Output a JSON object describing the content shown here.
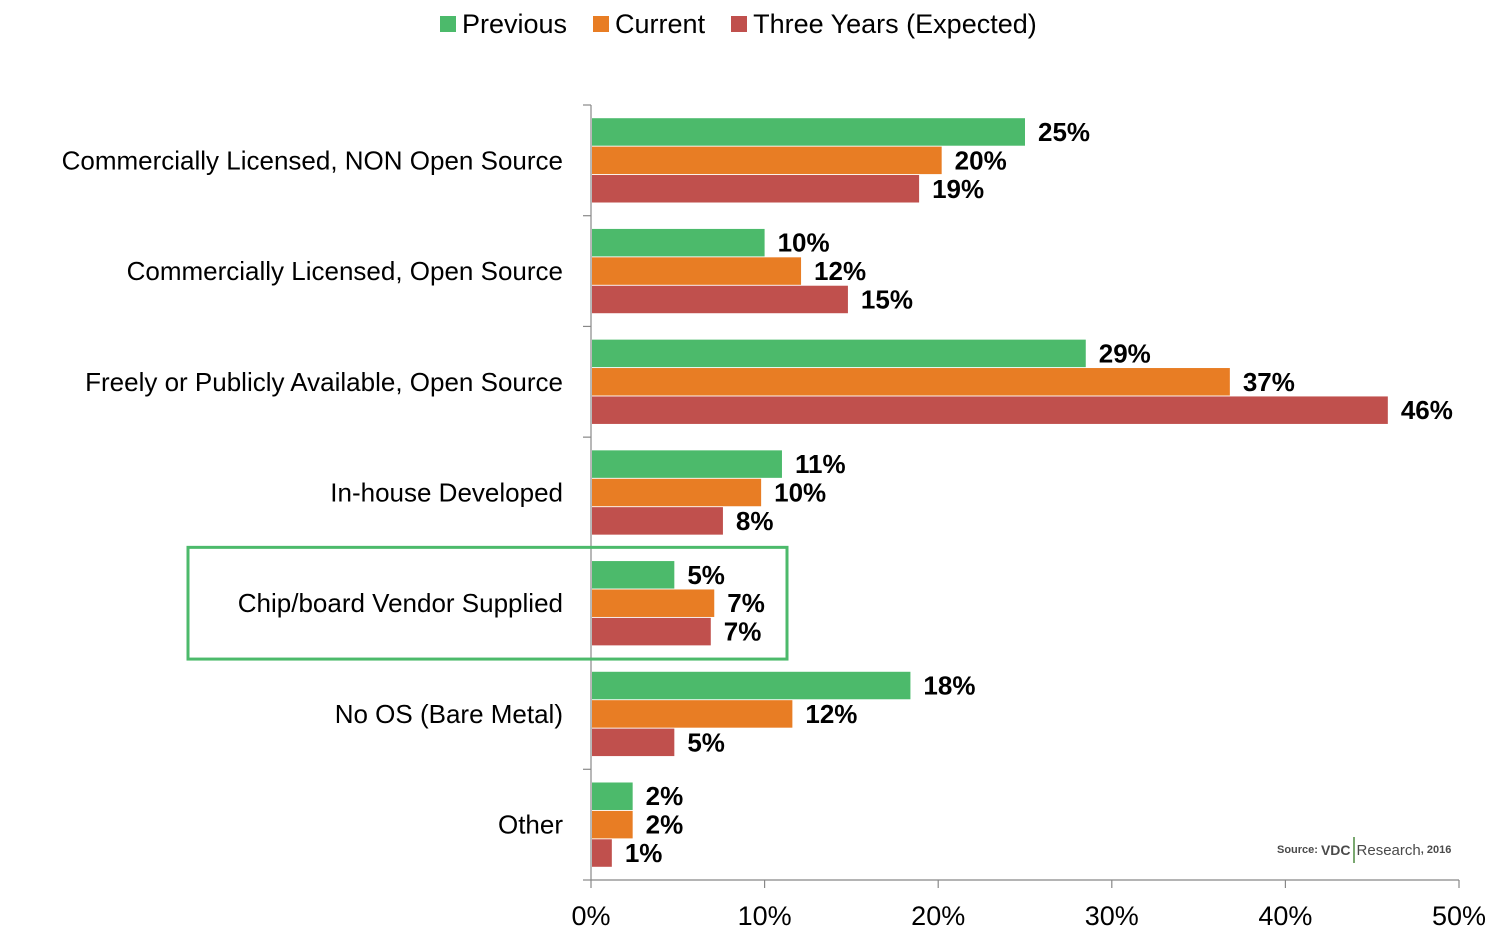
{
  "chart_data": {
    "type": "bar",
    "orientation": "horizontal",
    "categories": [
      "Commercially Licensed, NON Open Source",
      "Commercially Licensed, Open Source",
      "Freely or Publicly Available, Open Source",
      "In-house Developed",
      "Chip/board Vendor Supplied",
      "No OS (Bare Metal)",
      "Other"
    ],
    "series": [
      {
        "name": "Previous",
        "color": "#4cba6b",
        "values": [
          25,
          10,
          28.5,
          11,
          4.8,
          18.4,
          2.4
        ],
        "labels": [
          "25%",
          "10%",
          "29%",
          "11%",
          "5%",
          "18%",
          "2%"
        ]
      },
      {
        "name": "Current",
        "color": "#e87d24",
        "values": [
          20.2,
          12.1,
          36.8,
          9.8,
          7.1,
          11.6,
          2.4
        ],
        "labels": [
          "20%",
          "12%",
          "37%",
          "10%",
          "7%",
          "12%",
          "2%"
        ]
      },
      {
        "name": "Three Years (Expected)",
        "color": "#c0504d",
        "values": [
          18.9,
          14.8,
          45.9,
          7.6,
          6.9,
          4.8,
          1.2
        ],
        "labels": [
          "19%",
          "15%",
          "46%",
          "8%",
          "7%",
          "5%",
          "1%"
        ]
      }
    ],
    "xlim": [
      0,
      50
    ],
    "x_ticks": [
      0,
      10,
      20,
      30,
      40,
      50
    ],
    "x_tick_labels": [
      "0%",
      "10%",
      "20%",
      "30%",
      "40%",
      "50%"
    ],
    "legend_position": "top",
    "grid": false,
    "highlighted_category": "Chip/board Vendor Supplied",
    "highlight_color": "#4cba6b"
  },
  "source": {
    "prefix": "Source:",
    "brand": "VDC",
    "name": "Research",
    "year": ", 2016"
  }
}
